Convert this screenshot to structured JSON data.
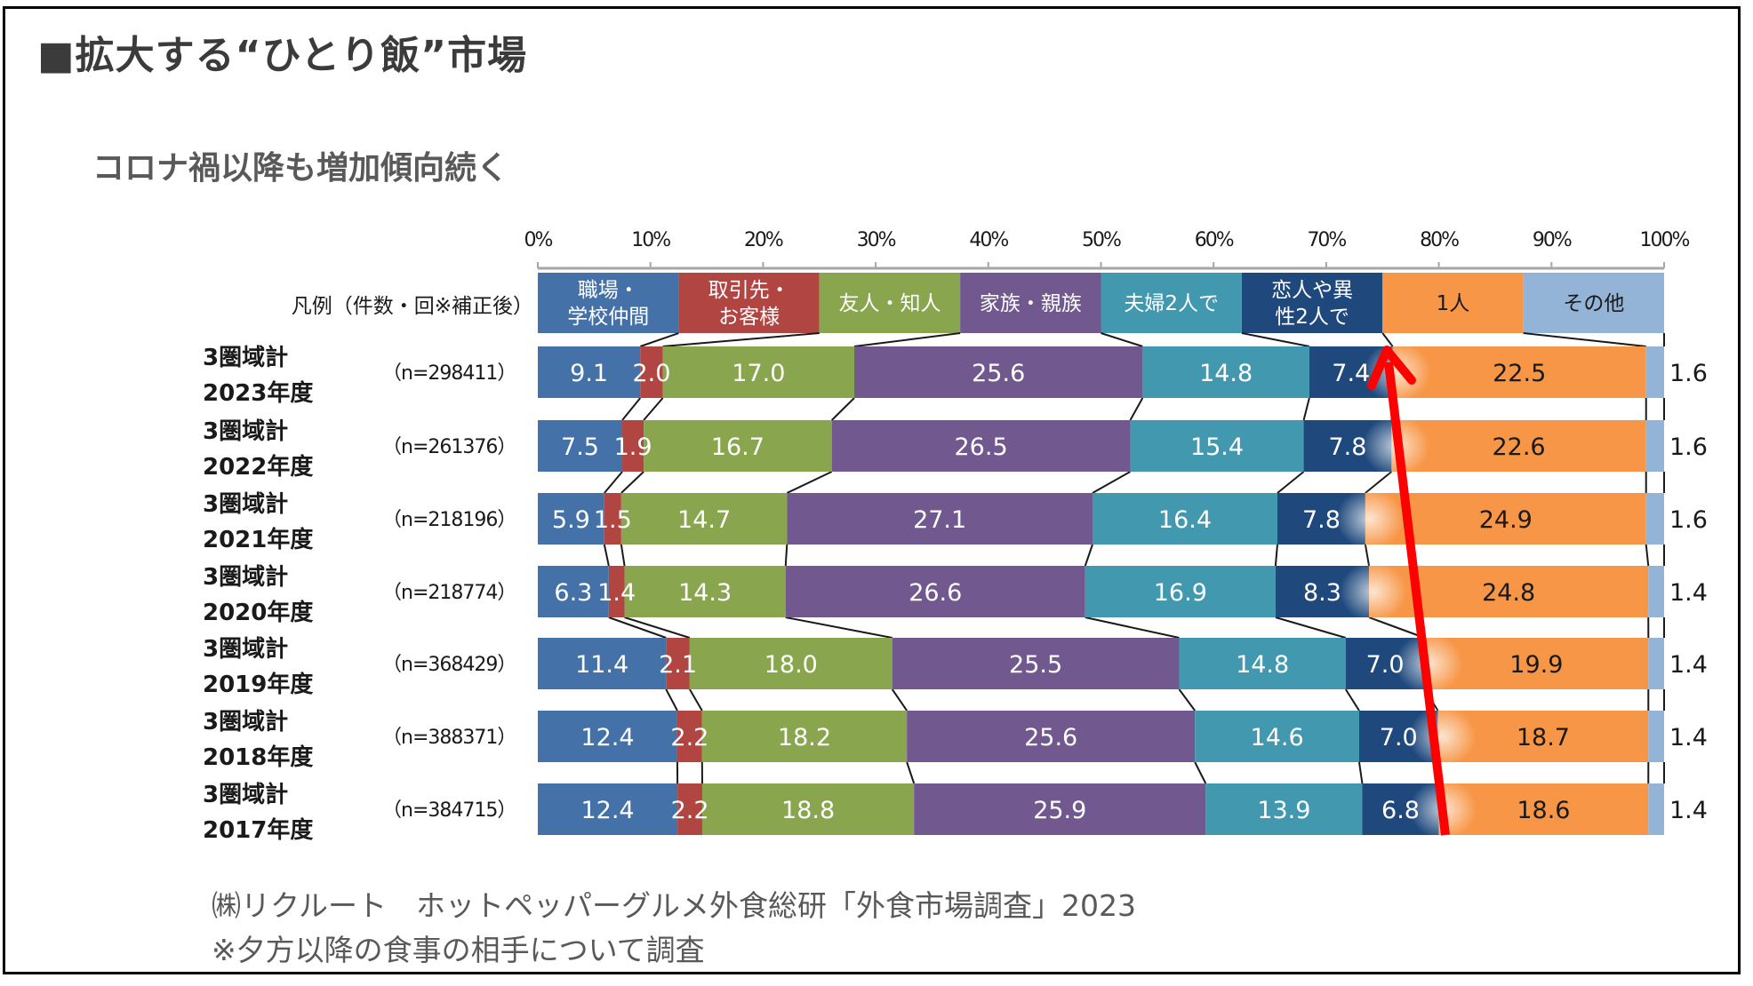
{
  "title": "■拡大する“ひとり飯”市場",
  "subtitle": "コロナ禍以降も増加傾向続く",
  "footer": {
    "source": "㈱リクルート　ホットペッパーグルメ外食総研「外食市場調査」2023",
    "note": "※夕方以降の食事の相手について調査"
  },
  "annotation": {
    "type": "red-arrow",
    "meaning": "1人 share increasing",
    "color": "#ff0000"
  },
  "chart_data": {
    "type": "bar",
    "orientation": "horizontal",
    "stacked": "100%",
    "title": "",
    "legend_label": "凡例（件数・回※補正後）",
    "legend_placement": "top",
    "xlabel": "",
    "ylabel": "",
    "xlim": [
      0,
      100
    ],
    "x_ticks": [
      "0%",
      "10%",
      "20%",
      "30%",
      "40%",
      "50%",
      "60%",
      "70%",
      "80%",
      "90%",
      "100%"
    ],
    "grid": false,
    "categories": [
      {
        "line1": "3圏域計",
        "line2": "2023年度",
        "n": "（n=298411）"
      },
      {
        "line1": "3圏域計",
        "line2": "2022年度",
        "n": "（n=261376）"
      },
      {
        "line1": "3圏域計",
        "line2": "2021年度",
        "n": "（n=218196）"
      },
      {
        "line1": "3圏域計",
        "line2": "2020年度",
        "n": "（n=218774）"
      },
      {
        "line1": "3圏域計",
        "line2": "2019年度",
        "n": "（n=368429）"
      },
      {
        "line1": "3圏域計",
        "line2": "2018年度",
        "n": "（n=388371）"
      },
      {
        "line1": "3圏域計",
        "line2": "2017年度",
        "n": "（n=384715）"
      }
    ],
    "series": [
      {
        "name": "職場・学校仲間",
        "legend_lines": [
          "職場・",
          "学校仲間"
        ],
        "color": "#4472a8",
        "text_color": "#ffffff",
        "values": [
          9.1,
          7.5,
          5.9,
          6.3,
          11.4,
          12.4,
          12.4
        ]
      },
      {
        "name": "取引先・お客様",
        "legend_lines": [
          "取引先・",
          "お客様"
        ],
        "color": "#b14542",
        "text_color": "#ffffff",
        "values": [
          2.0,
          1.9,
          1.5,
          1.4,
          2.1,
          2.2,
          2.2
        ]
      },
      {
        "name": "友人・知人",
        "legend_lines": [
          "友人・知人"
        ],
        "color": "#89a54e",
        "text_color": "#ffffff",
        "values": [
          17.0,
          16.7,
          14.7,
          14.3,
          18.0,
          18.2,
          18.8
        ]
      },
      {
        "name": "家族・親族",
        "legend_lines": [
          "家族・親族"
        ],
        "color": "#71588f",
        "text_color": "#ffffff",
        "values": [
          25.6,
          26.5,
          27.1,
          26.6,
          25.5,
          25.6,
          25.9
        ]
      },
      {
        "name": "夫婦2人で",
        "legend_lines": [
          "夫婦2人で"
        ],
        "color": "#4198af",
        "text_color": "#ffffff",
        "values": [
          14.8,
          15.4,
          16.4,
          16.9,
          14.8,
          14.6,
          13.9
        ]
      },
      {
        "name": "恋人や異性2人で",
        "legend_lines": [
          "恋人や異",
          "性2人で"
        ],
        "color": "#1f497d",
        "text_color": "#ffffff",
        "values": [
          7.4,
          7.8,
          7.8,
          8.3,
          7.0,
          7.0,
          6.8
        ]
      },
      {
        "name": "1人",
        "legend_lines": [
          "1人"
        ],
        "color": "#f79646",
        "text_color": "#1a1a1a",
        "values": [
          22.5,
          22.6,
          24.9,
          24.8,
          19.9,
          18.7,
          18.6
        ]
      },
      {
        "name": "その他",
        "legend_lines": [
          "その他"
        ],
        "color": "#93b3d7",
        "text_color": "#1a1a1a",
        "values": [
          1.6,
          1.6,
          1.6,
          1.4,
          1.4,
          1.4,
          1.4
        ]
      }
    ]
  }
}
